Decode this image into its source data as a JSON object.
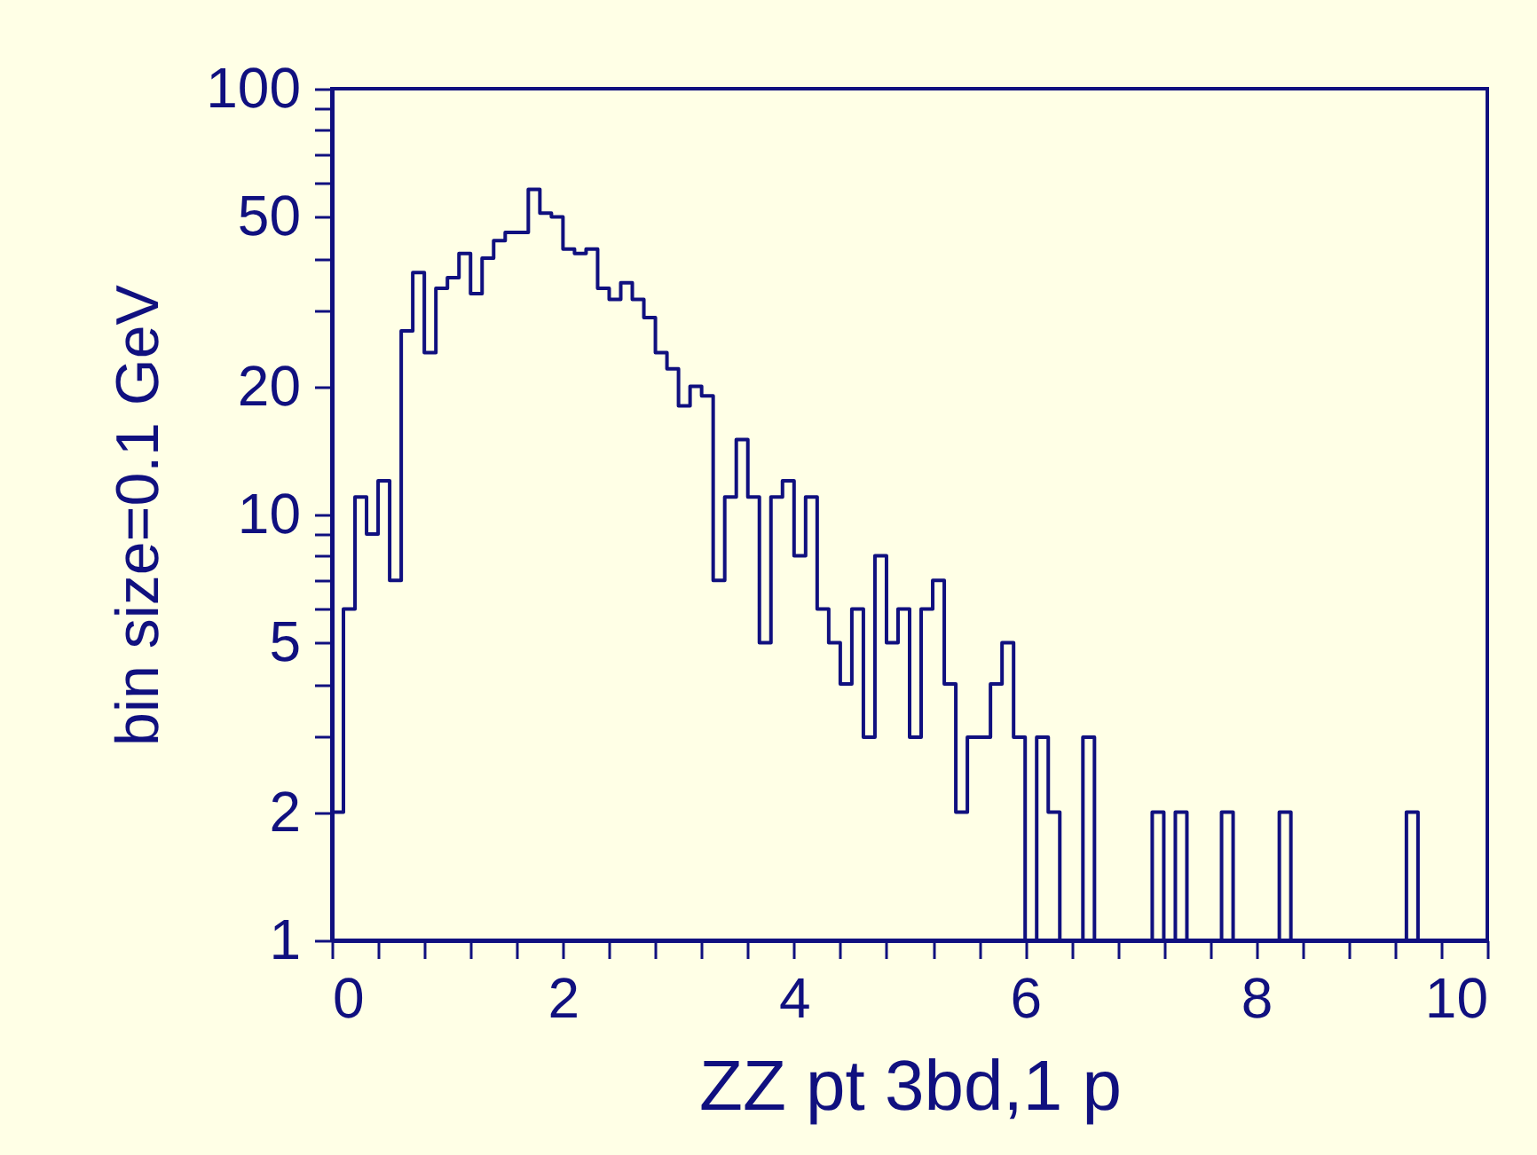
{
  "chart_data": {
    "type": "histogram",
    "xlabel": "ZZ pt 3bd,1 p",
    "ylabel": "bin size=0.1 GeV",
    "color": "#10107f",
    "log": "y",
    "grid": false,
    "bins": [
      0,
      0.1,
      0.2,
      0.3,
      0.4,
      0.5,
      0.6,
      0.7,
      0.8,
      0.9,
      1,
      1.1,
      1.2,
      1.3,
      1.4,
      1.5,
      1.6,
      1.7,
      1.8,
      1.9,
      2,
      2.1,
      2.2,
      2.3,
      2.4,
      2.5,
      2.6,
      2.7,
      2.8,
      2.9,
      3,
      3.1,
      3.2,
      3.3,
      3.4,
      3.5,
      3.6,
      3.7,
      3.8,
      3.9,
      4,
      4.1,
      4.2,
      4.3,
      4.4,
      4.5,
      4.6,
      4.7,
      4.8,
      4.9,
      5,
      5.1,
      5.2,
      5.3,
      5.4,
      5.5,
      5.6,
      5.7,
      5.8,
      5.9,
      6,
      6.1,
      6.2,
      6.3,
      6.4,
      6.5,
      6.6,
      6.7,
      6.8,
      6.9,
      7,
      7.1,
      7.2,
      7.3,
      7.4,
      7.5,
      7.6,
      7.7,
      7.8,
      7.9,
      8,
      8.1,
      8.2,
      8.3,
      8.4,
      8.5,
      8.6,
      8.7,
      8.8,
      8.9,
      9,
      9.1,
      9.2,
      9.3,
      9.4,
      9.5,
      9.6,
      9.7,
      9.8,
      9.9,
      10
    ],
    "values": [
      2,
      6,
      11,
      9,
      12,
      7,
      27,
      37,
      24,
      34,
      36,
      41,
      33,
      40,
      44,
      46,
      46,
      58,
      51,
      50,
      42,
      41,
      42,
      34,
      32,
      35,
      32,
      29,
      24,
      22,
      18,
      20,
      19,
      7,
      11,
      15,
      11,
      5,
      11,
      12,
      8,
      11,
      6,
      5,
      4,
      6,
      3,
      8,
      5,
      6,
      3,
      6,
      7,
      4,
      2,
      3,
      3,
      4,
      5,
      3,
      1,
      3,
      2,
      1,
      1,
      3,
      1,
      1,
      1,
      1,
      1,
      2,
      1,
      2,
      1,
      1,
      1,
      2,
      1,
      1,
      1,
      1,
      2,
      1,
      1,
      1,
      1,
      1,
      1,
      1,
      1,
      1,
      1,
      2,
      1,
      1,
      1,
      1,
      1,
      1
    ],
    "xlim": [
      0,
      10
    ],
    "xticks": [
      0,
      {
        "value": 0.4,
        "label": null
      },
      {
        "value": 0.8,
        "label": null
      },
      {
        "value": 1.2,
        "label": null
      },
      {
        "value": 1.6,
        "label": null
      },
      2,
      {
        "value": 2.4,
        "label": null
      },
      {
        "value": 2.8,
        "label": null
      },
      {
        "value": 3.2,
        "label": null
      },
      {
        "value": 3.6,
        "label": null
      },
      4,
      {
        "value": 4.4,
        "label": null
      },
      {
        "value": 4.8,
        "label": null
      },
      {
        "value": 5.2,
        "label": null
      },
      {
        "value": 5.6,
        "label": null
      },
      6,
      {
        "value": 6.4,
        "label": null
      },
      {
        "value": 6.8,
        "label": null
      },
      {
        "value": 7.2,
        "label": null
      },
      {
        "value": 7.6,
        "label": null
      },
      8,
      {
        "value": 8.4,
        "label": null
      },
      {
        "value": 8.8,
        "label": null
      },
      {
        "value": 9.2,
        "label": null
      },
      {
        "value": 9.6,
        "label": null
      },
      10
    ],
    "ylim": [
      1,
      100
    ],
    "yticks": [
      1,
      2,
      {
        "value": 3,
        "label": null
      },
      {
        "value": 4,
        "label": null
      },
      5,
      {
        "value": 6,
        "label": null
      },
      {
        "value": 7,
        "label": null
      },
      {
        "value": 8,
        "label": null
      },
      {
        "value": 9,
        "label": null
      },
      10,
      20,
      {
        "value": 30,
        "label": null
      },
      {
        "value": 40,
        "label": null
      },
      50,
      {
        "value": 60,
        "label": null
      },
      {
        "value": 70,
        "label": null
      },
      {
        "value": 80,
        "label": null
      },
      {
        "value": 90,
        "label": null
      },
      100
    ]
  }
}
